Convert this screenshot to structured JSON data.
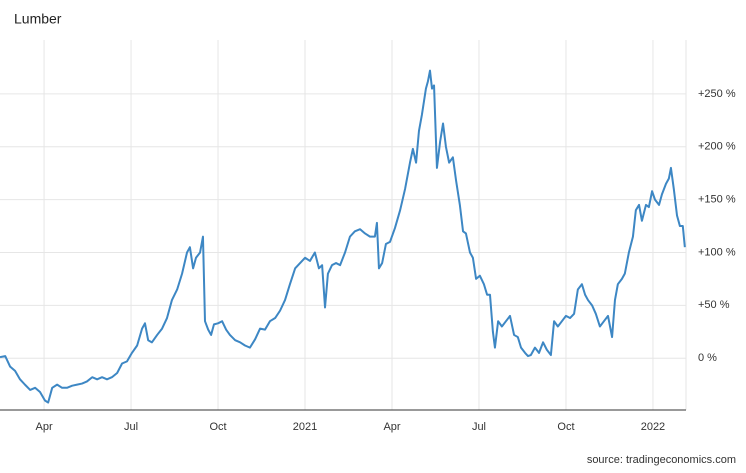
{
  "chart_data": {
    "type": "line",
    "title": "Lumber",
    "source": "source: tradingeconomics.com",
    "color": "#3d87c4",
    "grid": true,
    "x": [
      1.48,
      1.66,
      1.83,
      2.0,
      2.17,
      2.34,
      2.52,
      2.69,
      2.86,
      3.03,
      3.14,
      3.28,
      3.45,
      3.62,
      3.79,
      3.97,
      4.14,
      4.31,
      4.48,
      4.66,
      4.83,
      5.0,
      5.17,
      5.34,
      5.52,
      5.69,
      5.86,
      6.03,
      6.21,
      6.38,
      6.48,
      6.59,
      6.72,
      6.9,
      7.07,
      7.24,
      7.41,
      7.59,
      7.76,
      7.93,
      8.03,
      8.14,
      8.24,
      8.38,
      8.48,
      8.55,
      8.66,
      8.76,
      8.86,
      9.0,
      9.14,
      9.28,
      9.41,
      9.59,
      9.76,
      9.93,
      10.1,
      10.28,
      10.45,
      10.62,
      10.79,
      10.97,
      11.14,
      11.31,
      11.48,
      11.66,
      11.83,
      12.0,
      12.17,
      12.34,
      12.48,
      12.59,
      12.69,
      12.79,
      12.93,
      13.07,
      13.21,
      13.38,
      13.55,
      13.72,
      13.9,
      14.07,
      14.24,
      14.41,
      14.48,
      14.55,
      14.66,
      14.79,
      14.93,
      15.1,
      15.28,
      15.45,
      15.62,
      15.72,
      15.83,
      15.93,
      16.03,
      16.17,
      16.24,
      16.31,
      16.38,
      16.45,
      16.55,
      16.66,
      16.76,
      16.86,
      16.97,
      17.1,
      17.21,
      17.34,
      17.45,
      17.55,
      17.69,
      17.79,
      17.9,
      18.03,
      18.17,
      18.28,
      18.38,
      18.48,
      18.55,
      18.66,
      18.79,
      18.93,
      19.07,
      19.21,
      19.34,
      19.45,
      19.59,
      19.69,
      19.79,
      19.93,
      20.07,
      20.21,
      20.34,
      20.48,
      20.59,
      20.72,
      20.86,
      21.0,
      21.14,
      21.28,
      21.41,
      21.55,
      21.66,
      21.76,
      21.9,
      22.03,
      22.17,
      22.31,
      22.45,
      22.59,
      22.69,
      22.79,
      22.93,
      23.03,
      23.17,
      23.31,
      23.41,
      23.52,
      23.62,
      23.76,
      23.86,
      23.97,
      24.07,
      24.21,
      24.31,
      24.45,
      24.55,
      24.62,
      24.72,
      24.83,
      24.93,
      25.03,
      25.1
    ],
    "values": [
      1,
      2,
      -8,
      -12,
      -20,
      -25,
      -30,
      -28,
      -32,
      -40,
      -42,
      -28,
      -25,
      -28,
      -28,
      -26,
      -25,
      -24,
      -22,
      -18,
      -20,
      -18,
      -20,
      -18,
      -14,
      -5,
      -3,
      5,
      12,
      28,
      33,
      17,
      15,
      22,
      28,
      38,
      55,
      65,
      80,
      100,
      105,
      85,
      95,
      100,
      115,
      35,
      27,
      22,
      32,
      33,
      35,
      27,
      22,
      17,
      15,
      12,
      10,
      18,
      28,
      27,
      35,
      38,
      45,
      55,
      70,
      85,
      90,
      95,
      92,
      100,
      85,
      88,
      48,
      80,
      88,
      90,
      88,
      100,
      115,
      120,
      122,
      118,
      115,
      115,
      128,
      85,
      90,
      108,
      110,
      123,
      140,
      160,
      185,
      198,
      185,
      215,
      230,
      255,
      262,
      272,
      255,
      258,
      180,
      205,
      222,
      200,
      185,
      190,
      168,
      145,
      120,
      118,
      100,
      95,
      75,
      78,
      70,
      60,
      60,
      25,
      10,
      35,
      30,
      35,
      40,
      22,
      20,
      10,
      5,
      2,
      3,
      10,
      5,
      15,
      8,
      3,
      35,
      30,
      35,
      40,
      38,
      42,
      65,
      70,
      60,
      55,
      50,
      42,
      30,
      35,
      40,
      20,
      55,
      70,
      75,
      80,
      100,
      115,
      140,
      145,
      130,
      145,
      143,
      158,
      150,
      145,
      155,
      165,
      170,
      180,
      160,
      135,
      125,
      125,
      105
    ],
    "xlim": [
      1.48,
      25.14
    ],
    "xticks": [
      {
        "value": 3,
        "label": "Apr"
      },
      {
        "value": 6,
        "label": "Jul"
      },
      {
        "value": 9,
        "label": "Oct"
      },
      {
        "value": 12,
        "label": "2021"
      },
      {
        "value": 15,
        "label": "Apr"
      },
      {
        "value": 18,
        "label": "Jul"
      },
      {
        "value": 21,
        "label": "Oct"
      },
      {
        "value": 24,
        "label": "2022"
      }
    ],
    "ylim": [
      -49,
      301
    ],
    "yticks": [
      {
        "value": 0,
        "label": "0 %"
      },
      {
        "value": 50,
        "label": "+50 %"
      },
      {
        "value": 100,
        "label": "+100 %"
      },
      {
        "value": 150,
        "label": "+150 %"
      },
      {
        "value": 200,
        "label": "+200 %"
      },
      {
        "value": 250,
        "label": "+250 %"
      }
    ]
  }
}
